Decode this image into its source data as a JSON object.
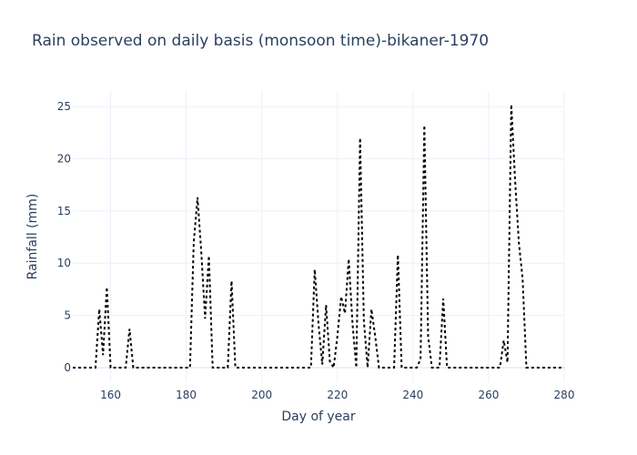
{
  "chart_data": {
    "type": "line",
    "title": "Rain observed on daily basis (monsoon time)-bikaner-1970",
    "xlabel": "Day of year",
    "ylabel": "Rainfall (mm)",
    "xlim": [
      150,
      280
    ],
    "ylim": [
      -1.4,
      26.5
    ],
    "xticks": [
      160,
      180,
      200,
      220,
      240,
      260,
      280
    ],
    "yticks": [
      0,
      5,
      10,
      15,
      20,
      25
    ],
    "grid": true,
    "line_style": "dotted",
    "line_color": "#000000",
    "series": [
      {
        "name": "",
        "x": [
          150,
          151,
          152,
          153,
          154,
          155,
          156,
          157,
          158,
          159,
          160,
          161,
          162,
          163,
          164,
          165,
          166,
          167,
          168,
          169,
          170,
          171,
          172,
          173,
          174,
          175,
          176,
          177,
          178,
          179,
          180,
          181,
          182,
          183,
          184,
          185,
          186,
          187,
          188,
          189,
          190,
          191,
          192,
          193,
          194,
          195,
          196,
          197,
          198,
          199,
          200,
          201,
          202,
          203,
          204,
          205,
          206,
          207,
          208,
          209,
          210,
          211,
          212,
          213,
          214,
          215,
          216,
          217,
          218,
          219,
          220,
          221,
          222,
          223,
          224,
          225,
          226,
          227,
          228,
          229,
          230,
          231,
          232,
          233,
          234,
          235,
          236,
          237,
          238,
          239,
          240,
          241,
          242,
          243,
          244,
          245,
          246,
          247,
          248,
          249,
          250,
          251,
          252,
          253,
          254,
          255,
          256,
          257,
          258,
          259,
          260,
          261,
          262,
          263,
          264,
          265,
          266,
          267,
          268,
          269,
          270,
          271,
          272,
          273,
          274,
          275,
          276,
          277,
          278,
          279,
          280
        ],
        "y": [
          0,
          0,
          0,
          0,
          0,
          0,
          0,
          5.6,
          1.2,
          7.7,
          0,
          0,
          0,
          0,
          0,
          3.7,
          0,
          0,
          0,
          0,
          0,
          0,
          0,
          0,
          0,
          0,
          0,
          0,
          0,
          0,
          0,
          0,
          12.0,
          16.3,
          11.0,
          4.7,
          10.7,
          0,
          0,
          0,
          0,
          0,
          8.3,
          0,
          0,
          0,
          0,
          0,
          0,
          0,
          0,
          0,
          0,
          0,
          0,
          0,
          0,
          0,
          0,
          0,
          0,
          0,
          0,
          0,
          9.4,
          4.2,
          0.3,
          6.0,
          0.6,
          0,
          3.0,
          6.8,
          5.2,
          10.4,
          4.2,
          0,
          22.0,
          4.5,
          0,
          5.6,
          3.0,
          0,
          0,
          0,
          0,
          0,
          10.8,
          0,
          0,
          0,
          0,
          0,
          0.8,
          23.2,
          3.0,
          0,
          0,
          0,
          6.6,
          0,
          0,
          0,
          0,
          0,
          0,
          0,
          0,
          0,
          0,
          0,
          0,
          0,
          0,
          0,
          2.6,
          0.5,
          25.2,
          18.0,
          12.0,
          8.5,
          0,
          0,
          0,
          0,
          0,
          0,
          0,
          0,
          0,
          0,
          0
        ]
      }
    ]
  }
}
